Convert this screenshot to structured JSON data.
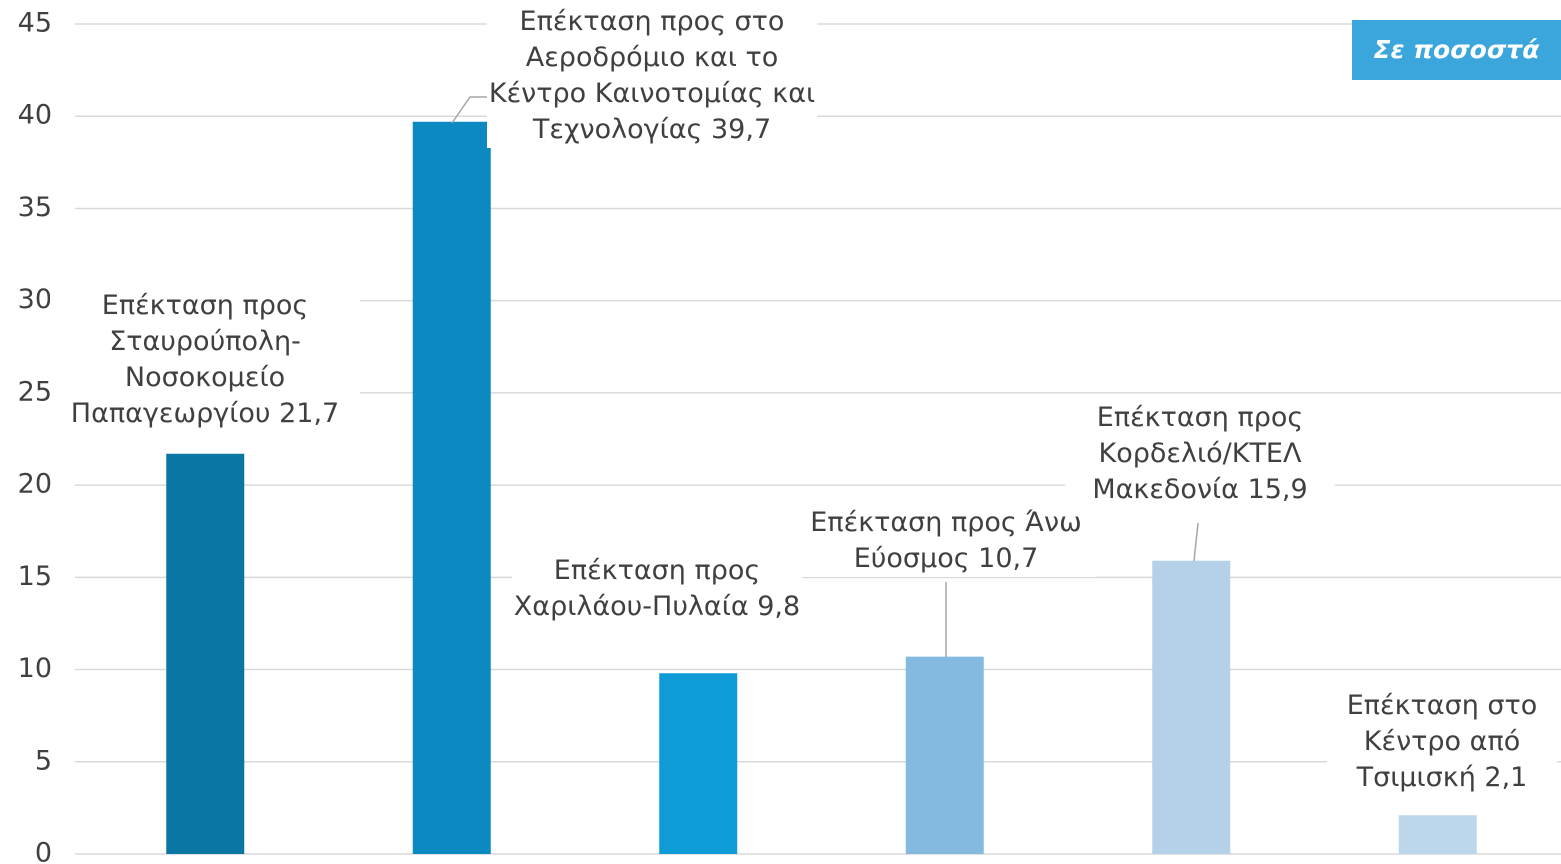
{
  "chart_data": {
    "type": "bar",
    "annotation": "Σε ποσοστά",
    "categories": [
      "Επέκταση προς Σταυρούπολη-Νοσοκομείο Παπαγεωργίου",
      "Επέκταση προς στο Αεροδρόμιο και το Κέντρο Καινοτομίας και Τεχνολογίας",
      "Επέκταση προς Χαριλάου-Πυλαία",
      "Επέκταση προς Άνω Εύοσμος",
      "Επέκταση προς Κορδελιό/ΚΤΕΛ Μακεδονία",
      "Επέκταση στο Κέντρο από Τσιμισκή"
    ],
    "values": [
      21.7,
      39.7,
      9.8,
      10.7,
      15.9,
      2.1
    ],
    "value_labels": [
      "21,7",
      "39,7",
      "9,8",
      "10,7",
      "15,9",
      "2,1"
    ],
    "colors": [
      "#0a76a4",
      "#0b89c0",
      "#0f9bd6",
      "#85bae0",
      "#b5d1ea",
      "#bcd6ec"
    ],
    "ylim": [
      0,
      45
    ],
    "yticks": [
      0,
      5,
      10,
      15,
      20,
      25,
      30,
      35,
      40,
      45
    ],
    "grid": true
  }
}
